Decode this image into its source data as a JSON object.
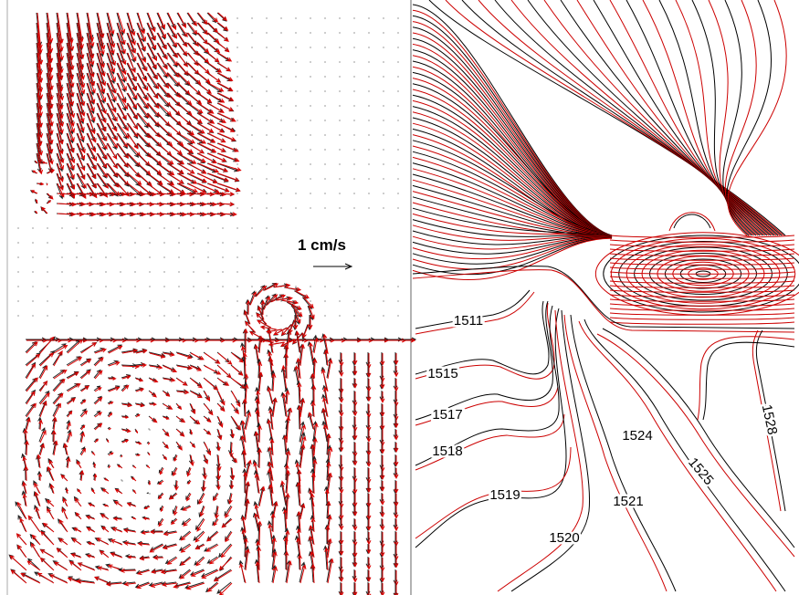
{
  "scale_label": "1 cm/s",
  "contour_labels": [
    1511,
    1515,
    1517,
    1518,
    1519,
    1520,
    1521,
    1524,
    1525,
    1528
  ]
}
